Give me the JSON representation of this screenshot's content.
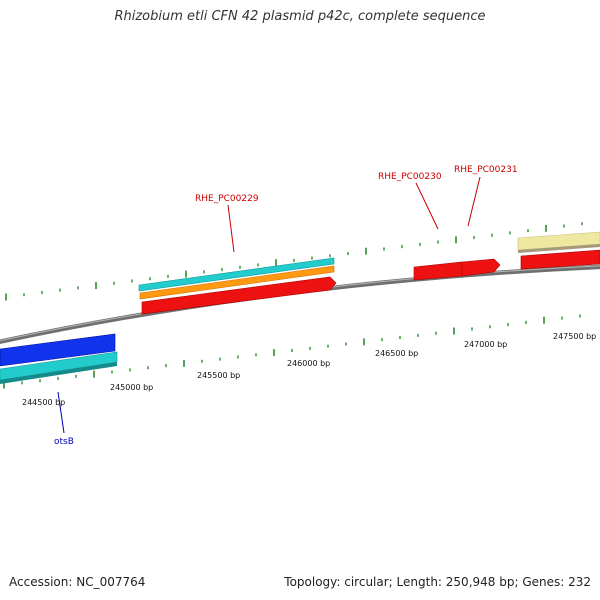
{
  "title": "Rhizobium etli CFN 42 plasmid p42c, complete sequence",
  "footer": {
    "accession": "Accession: NC_007764",
    "summary": "Topology: circular; Length: 250,948 bp; Genes: 232"
  },
  "colors": {
    "backbone": "#7f7f7f",
    "tick": "#2e8b2e",
    "red_gene": "#ee1111",
    "cyan_gene": "#22cccc",
    "orange_gene": "#ff9911",
    "blue_gene": "#1133ee",
    "khaki_gene": "#eee8a0",
    "gene_label_red": "#cc0000",
    "gene_label_blue": "#0000bb"
  },
  "bp_labels": [
    "244500 bp",
    "245000 bp",
    "245500 bp",
    "246000 bp",
    "246500 bp",
    "247000 bp",
    "247500 bp"
  ],
  "gene_labels": [
    {
      "name": "RHE_PC00229",
      "color": "red"
    },
    {
      "name": "RHE_PC00230",
      "color": "red"
    },
    {
      "name": "RHE_PC00231",
      "color": "red"
    },
    {
      "name": "otsB",
      "color": "blue"
    }
  ]
}
